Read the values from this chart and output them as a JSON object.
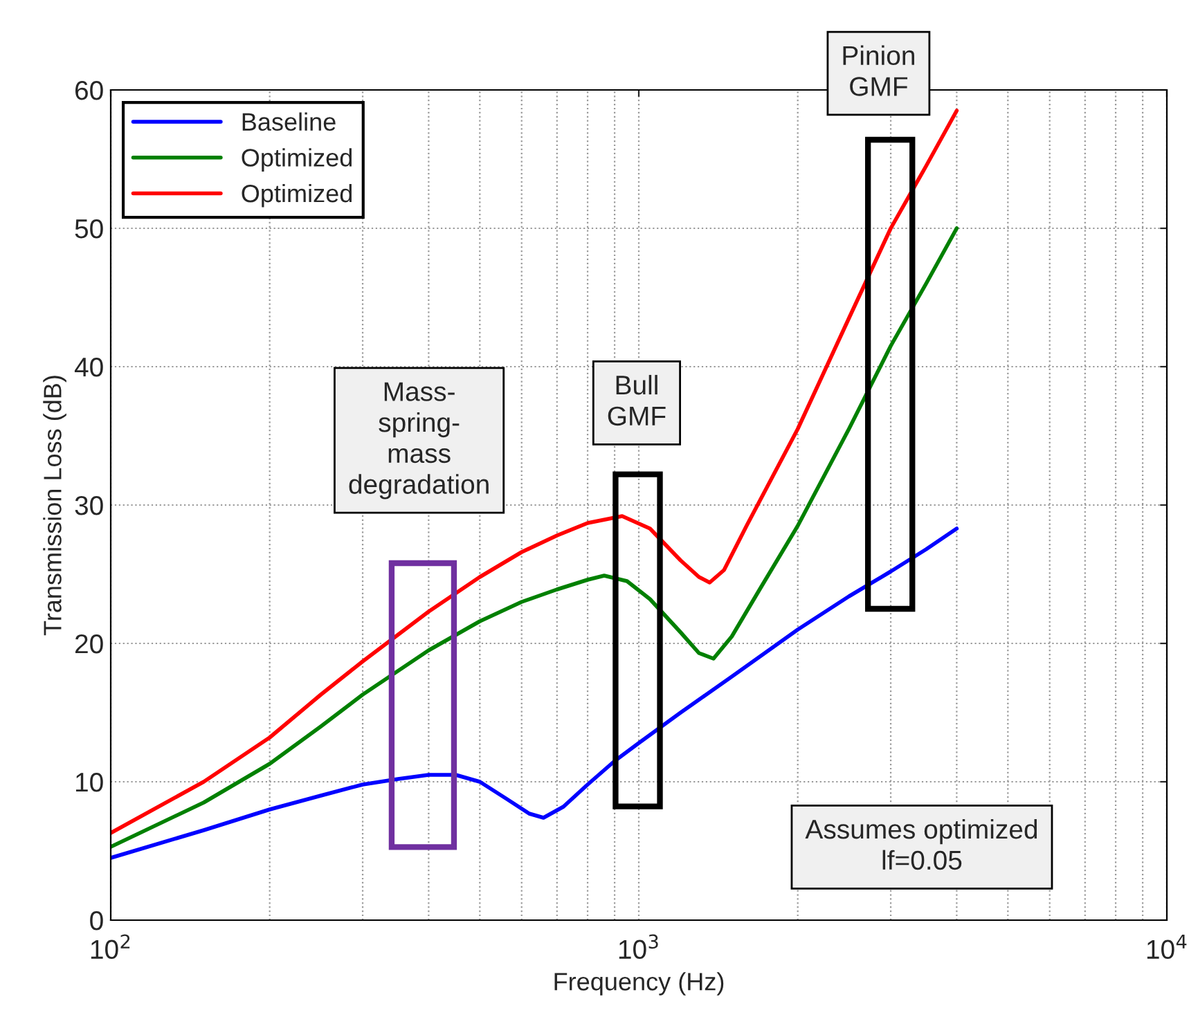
{
  "chart_data": {
    "type": "line",
    "xlabel": "Frequency (Hz)",
    "ylabel": "Transmission Loss (dB)",
    "log": "x",
    "xlim": [
      100,
      10000
    ],
    "xticks": [
      {
        "value": 100,
        "label": "10$^{2}$"
      },
      {
        "value": 1000,
        "label": "10$^{3}$"
      },
      {
        "value": 10000,
        "label": "10$^{4}$"
      }
    ],
    "ylim": [
      0,
      60
    ],
    "yticks": [
      0,
      10,
      20,
      30,
      40,
      50,
      60
    ],
    "grid": true,
    "legend": "top left",
    "line_style": "solid",
    "marker": "none",
    "series": [
      {
        "name": "Baseline",
        "color": "#0000ff",
        "x": [
          100,
          150,
          200,
          250,
          300,
          350,
          400,
          450,
          500,
          560,
          620,
          660,
          720,
          800,
          900,
          1000,
          1200,
          1500,
          2000,
          2500,
          3000,
          3500,
          4000
        ],
        "values": [
          4.5,
          6.5,
          8.0,
          9.0,
          9.8,
          10.2,
          10.5,
          10.5,
          10.0,
          8.8,
          7.7,
          7.4,
          8.2,
          9.8,
          11.5,
          12.8,
          15.0,
          17.6,
          21.0,
          23.4,
          25.2,
          26.8,
          28.3
        ]
      },
      {
        "name": "Optimized",
        "color": "#008000",
        "x": [
          100,
          150,
          200,
          250,
          300,
          400,
          500,
          600,
          700,
          800,
          860,
          950,
          1050,
          1200,
          1300,
          1385,
          1500,
          1700,
          2000,
          2500,
          3000,
          3500,
          4000
        ],
        "values": [
          5.3,
          8.5,
          11.3,
          14.0,
          16.3,
          19.5,
          21.6,
          23.0,
          23.9,
          24.6,
          24.9,
          24.5,
          23.2,
          20.8,
          19.3,
          18.9,
          20.5,
          24.0,
          28.5,
          35.5,
          41.5,
          46.0,
          50.0
        ]
      },
      {
        "name": "Optimized",
        "color": "#ff0000",
        "x": [
          100,
          150,
          200,
          250,
          300,
          400,
          500,
          600,
          700,
          800,
          930,
          1050,
          1200,
          1300,
          1362,
          1450,
          1600,
          2000,
          2500,
          3000,
          3500,
          4000
        ],
        "values": [
          6.3,
          10.0,
          13.2,
          16.3,
          18.7,
          22.3,
          24.8,
          26.6,
          27.8,
          28.7,
          29.2,
          28.3,
          26.0,
          24.8,
          24.4,
          25.3,
          28.5,
          35.5,
          43.5,
          50.0,
          54.5,
          58.5
        ]
      }
    ],
    "annotations": [
      "Mass-\nspring-\nmass\ndegradation",
      "Bull\nGMF",
      "Pinion\nGMF",
      "Assumes optimized\nlf=0.05"
    ]
  }
}
